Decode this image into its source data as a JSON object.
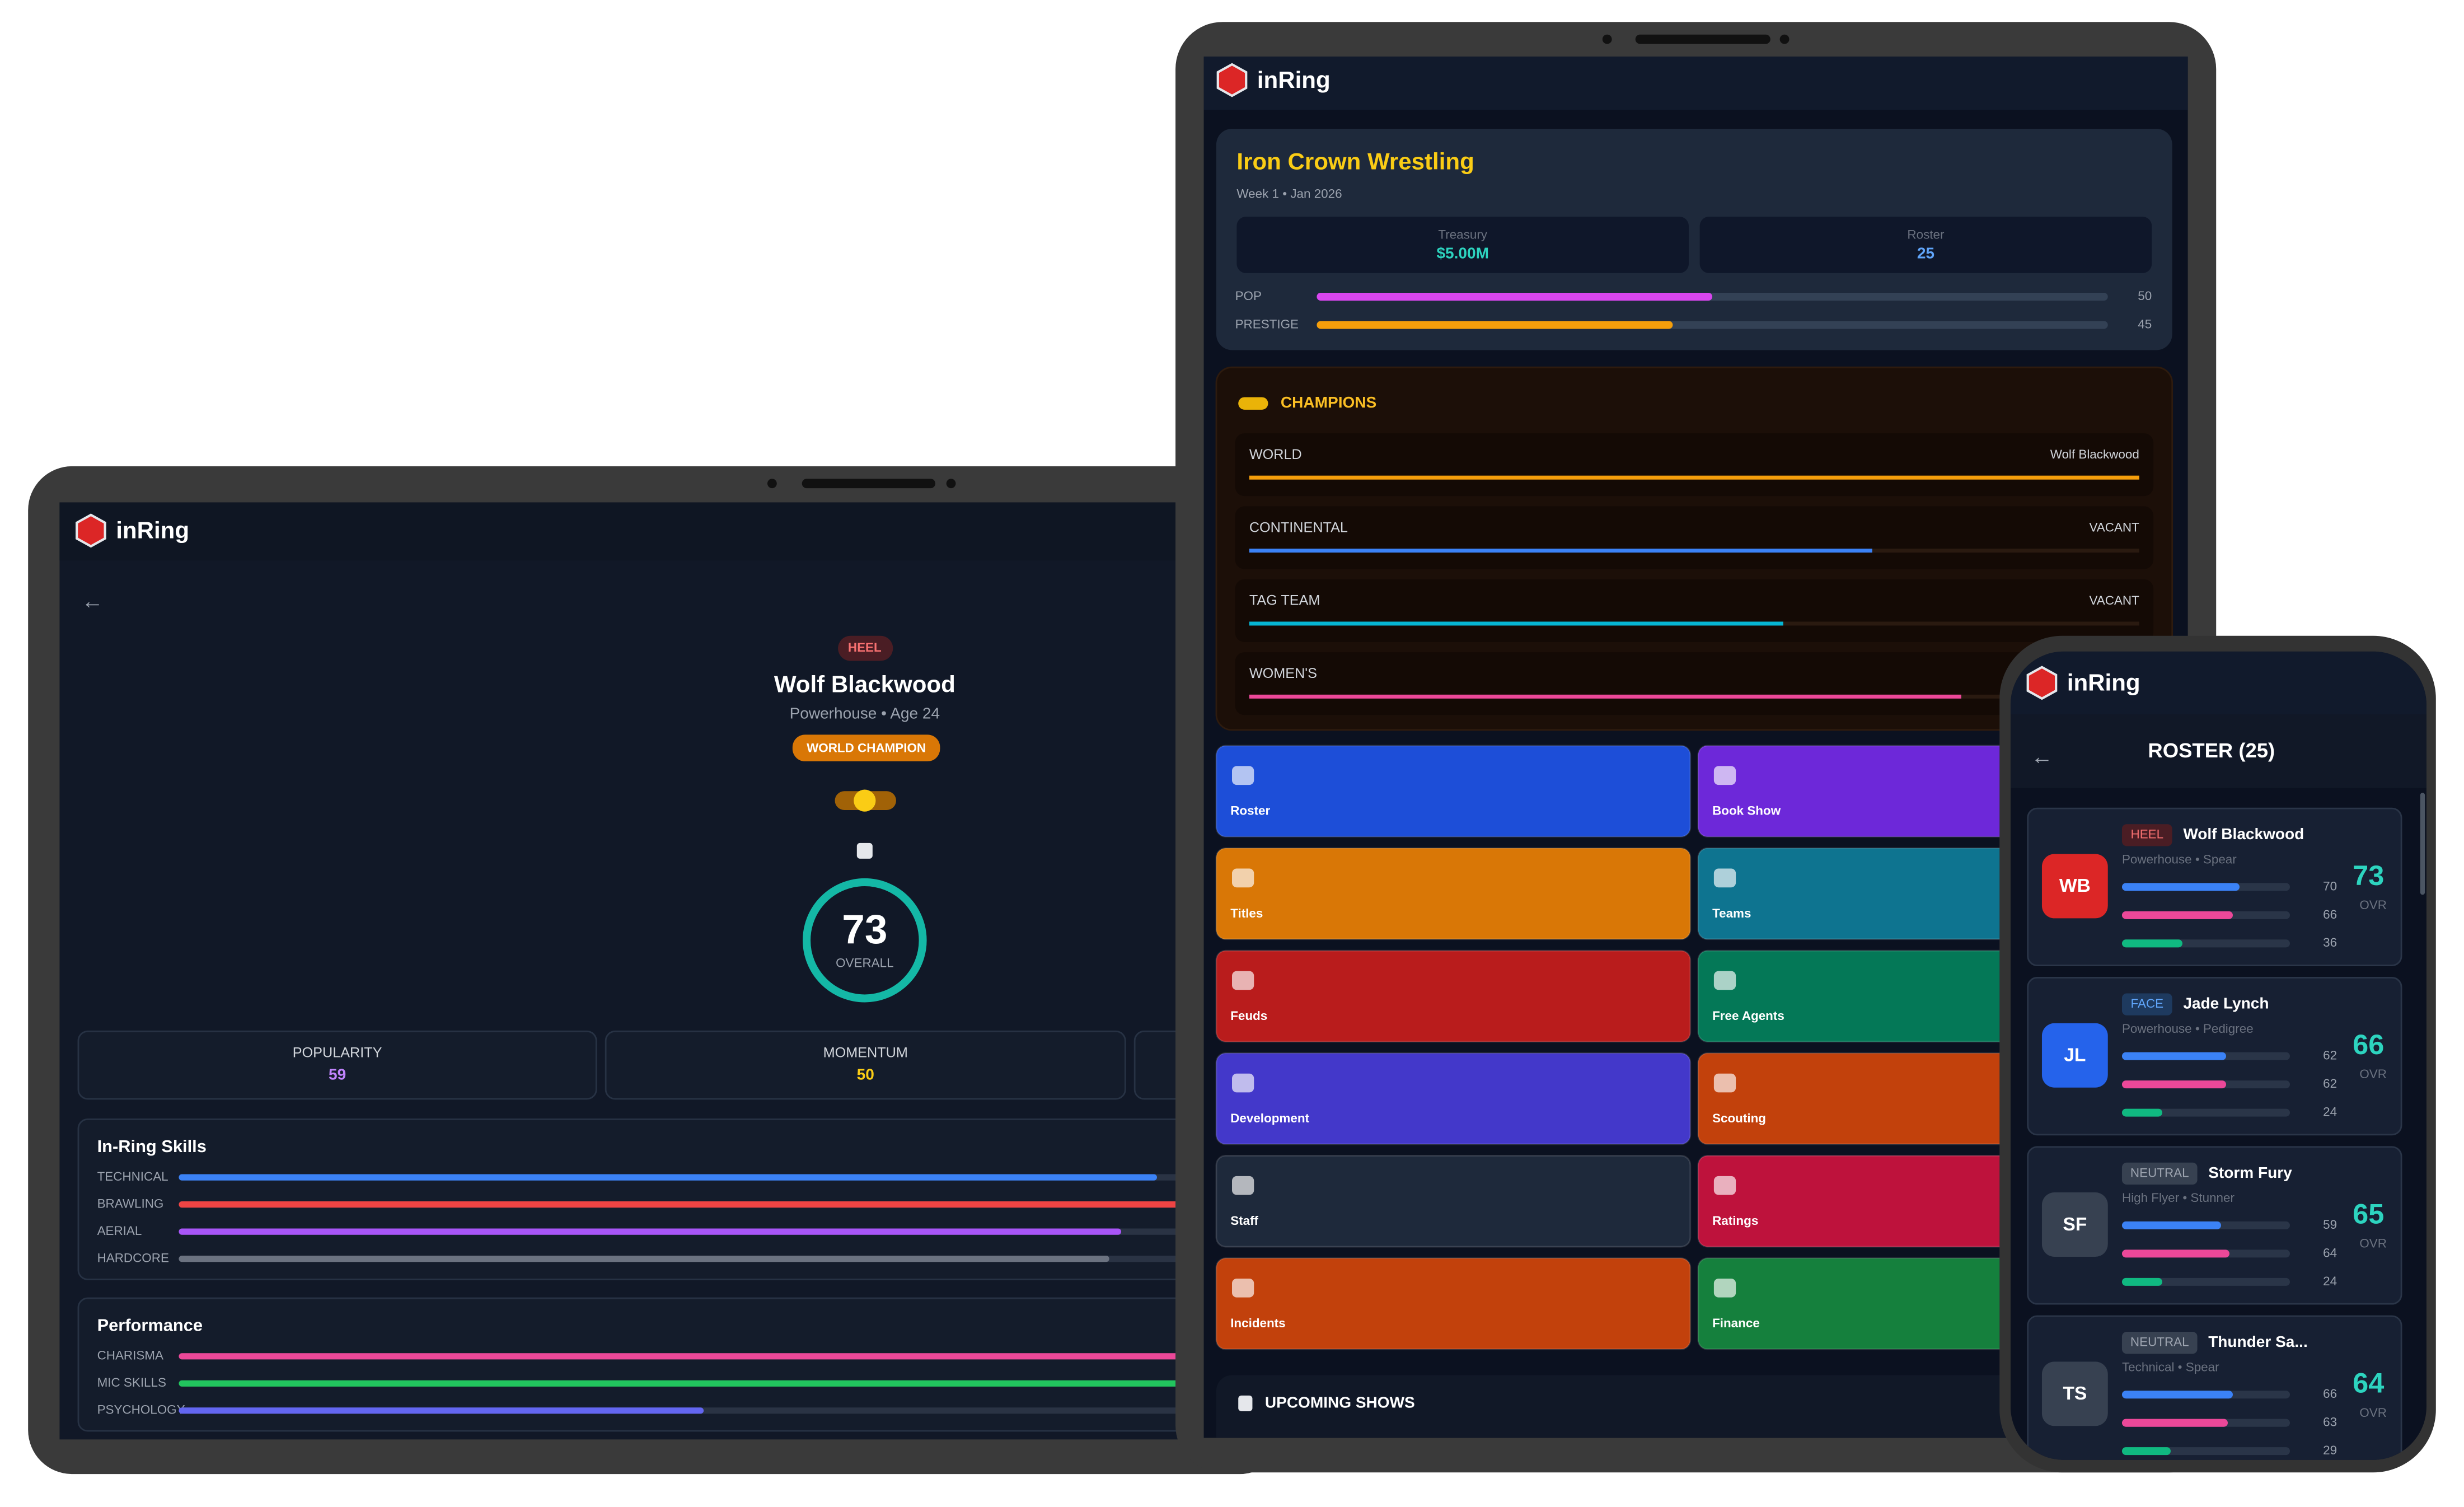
{
  "brand": "inRing",
  "laptop": {
    "back": "←",
    "alignment": "HEEL",
    "name": "Wolf Blackwood",
    "subtitle": "Powerhouse • Age 24",
    "badge": "WORLD CHAMPION",
    "overall": {
      "value": 73,
      "label": "OVERALL"
    },
    "stats": [
      {
        "label": "POPULARITY",
        "value": 59,
        "color": "#c084fc"
      },
      {
        "label": "MOMENTUM",
        "value": 50,
        "color": "#facc15"
      }
    ],
    "sections": [
      {
        "title": "In-Ring Skills",
        "skills": [
          {
            "label": "TECHNICAL",
            "value": 82,
            "color": "#3b82f6"
          },
          {
            "label": "BRAWLING",
            "value": 88,
            "color": "#ef4444"
          },
          {
            "label": "AERIAL",
            "value": 79,
            "color": "#a855f7"
          },
          {
            "label": "HARDCORE",
            "value": 78,
            "color": "#6b7280"
          }
        ]
      },
      {
        "title": "Performance",
        "skills": [
          {
            "label": "CHARISMA",
            "value": 90,
            "color": "#ec4899"
          },
          {
            "label": "MIC SKILLS",
            "value": 92,
            "color": "#22c55e"
          },
          {
            "label": "PSYCHOLOGY",
            "value": 44,
            "color": "#6366f1"
          }
        ]
      }
    ]
  },
  "tablet": {
    "org": "Iron Crown Wrestling",
    "date": "Week 1 • Jan 2026",
    "treasury": {
      "label": "Treasury",
      "value": "$5.00M"
    },
    "roster": {
      "label": "Roster",
      "value": 25
    },
    "meters": [
      {
        "label": "POP",
        "value": 50,
        "color": "#d946ef"
      },
      {
        "label": "PRESTIGE",
        "value": 45,
        "color": "#f59e0b"
      }
    ],
    "champions_title": "CHAMPIONS",
    "champions": [
      {
        "title": "WORLD",
        "holder": "Wolf Blackwood",
        "color": "#f59e0b"
      },
      {
        "title": "CONTINENTAL",
        "holder": "VACANT",
        "color": "#3b82f6"
      },
      {
        "title": "TAG TEAM",
        "holder": "VACANT",
        "color": "#06b6d4"
      },
      {
        "title": "WOMEN'S",
        "holder": null,
        "color": "#ec4899"
      }
    ],
    "tiles": [
      {
        "label": "Roster",
        "color": "#1d4ed8"
      },
      {
        "label": "Book Show",
        "color": "#6d28d9"
      },
      {
        "label": "Titles",
        "color": "#d97706"
      },
      {
        "label": "Teams",
        "color": "#0e7490"
      },
      {
        "label": "Feuds",
        "color": "#b91c1c"
      },
      {
        "label": "Free Agents",
        "color": "#047857"
      },
      {
        "label": "Development",
        "color": "#4338ca"
      },
      {
        "label": "Scouting",
        "color": "#c2410c"
      },
      {
        "label": "Staff",
        "color": "#1e293b"
      },
      {
        "label": "Ratings",
        "color": "#be123c"
      },
      {
        "label": "Incidents",
        "color": "#c2410c"
      },
      {
        "label": "Finance",
        "color": "#15803d"
      }
    ],
    "upcoming": "UPCOMING SHOWS"
  },
  "phone": {
    "back": "←",
    "title": "ROSTER (25)",
    "ovr_label": "OVR",
    "wrestlers": [
      {
        "initials": "WB",
        "alignment": "HEEL",
        "name": "Wolf Blackwood",
        "style": "Powerhouse • Spear",
        "ratings": [
          70,
          66,
          36
        ],
        "overall": 73,
        "color": "#dc2626"
      },
      {
        "initials": "JL",
        "alignment": "FACE",
        "name": "Jade Lynch",
        "style": "Powerhouse • Pedigree",
        "ratings": [
          62,
          62,
          24
        ],
        "overall": 66,
        "color": "#2563eb"
      },
      {
        "initials": "SF",
        "alignment": "NEUTRAL",
        "name": "Storm Fury",
        "style": "High Flyer • Stunner",
        "ratings": [
          59,
          64,
          24
        ],
        "overall": 65,
        "color": "#374151"
      },
      {
        "initials": "TS",
        "alignment": "NEUTRAL",
        "name": "Thunder Sa...",
        "style": "Technical • Spear",
        "ratings": [
          66,
          63,
          29
        ],
        "overall": 64,
        "color": "#374151"
      }
    ]
  }
}
